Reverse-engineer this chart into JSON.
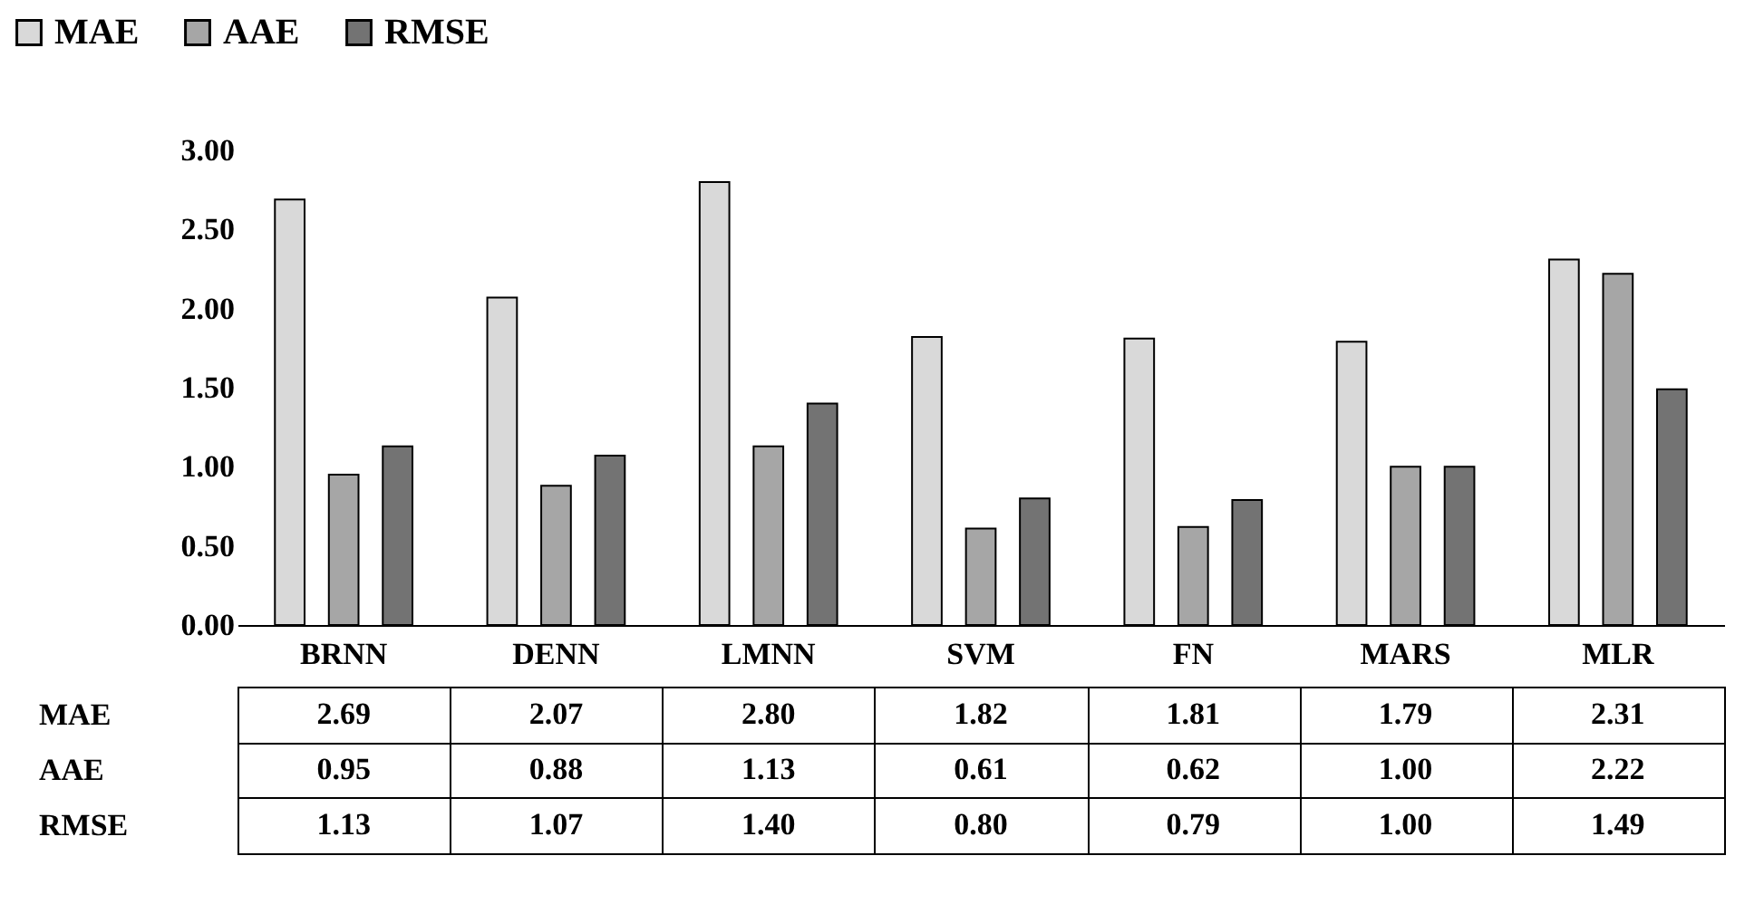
{
  "chart_data": {
    "type": "bar",
    "categories": [
      "BRNN",
      "DENN",
      "LMNN",
      "SVM",
      "FN",
      "MARS",
      "MLR"
    ],
    "series": [
      {
        "name": "MAE",
        "color": "#d9d9d9",
        "values": [
          2.69,
          2.07,
          2.8,
          1.82,
          1.81,
          1.79,
          2.31
        ],
        "value_labels": [
          "2.69",
          "2.07",
          "2.80",
          "1.82",
          "1.81",
          "1.79",
          "2.31"
        ]
      },
      {
        "name": "AAE",
        "color": "#a6a6a6",
        "values": [
          0.95,
          0.88,
          1.13,
          0.61,
          0.62,
          1.0,
          2.22
        ],
        "value_labels": [
          "0.95",
          "0.88",
          "1.13",
          "0.61",
          "0.62",
          "1.00",
          "2.22"
        ]
      },
      {
        "name": "RMSE",
        "color": "#737373",
        "values": [
          1.13,
          1.07,
          1.4,
          0.8,
          0.79,
          1.0,
          1.49
        ],
        "value_labels": [
          "1.13",
          "1.07",
          "1.40",
          "0.80",
          "0.79",
          "1.00",
          "1.49"
        ]
      }
    ],
    "ylim": [
      0,
      3
    ],
    "yticks": [
      {
        "value": 0,
        "label": "0.00"
      },
      {
        "value": 0.5,
        "label": "0.50"
      },
      {
        "value": 1,
        "label": "1.00"
      },
      {
        "value": 1.5,
        "label": "1.50"
      },
      {
        "value": 2,
        "label": "2.00"
      },
      {
        "value": 2.5,
        "label": "2.50"
      },
      {
        "value": 3,
        "label": "3.00"
      }
    ],
    "legend": "top left"
  }
}
